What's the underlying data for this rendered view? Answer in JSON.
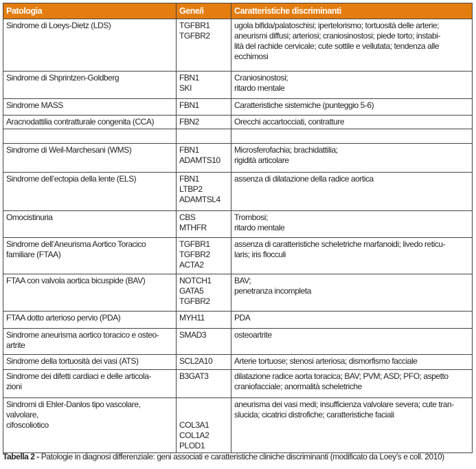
{
  "header": [
    "Patologia",
    "Gene/i",
    "Caratteristiche discriminanti"
  ],
  "rows": [
    {
      "p": [
        "Sindrome di Loeys-Dietz (LDS)"
      ],
      "g": [
        "TGFBR1",
        "TGFBR2"
      ],
      "c": [
        "ugola bifida/palatoschisi; ipertelorismo; tortuosità delle arterie;",
        "aneurismi diffusi; arteriosi; craniosinostosi; piede torto; instabi-",
        "lità del rachide cervicale; cute sottile e vellutata; tendenza alle",
        "ecchimosi"
      ]
    },
    {
      "p": [
        "Sindrome di Shprintzen-Goldberg"
      ],
      "g": [
        "FBN1",
        "SKI"
      ],
      "c": [
        "Craniosinostosi;",
        "ritardo mentale"
      ]
    },
    {
      "p": [
        "Sindrome MASS"
      ],
      "g": [
        "FBN1"
      ],
      "c": [
        "Caratteristiche sistemiche (punteggio 5-6)"
      ]
    },
    {
      "p": [
        "Aracnodattilia contratturale congenita (CCA)"
      ],
      "g": [
        "FBN2"
      ],
      "c": [
        "Orecchi accartocciati, contratture"
      ]
    },
    {
      "p": [
        ""
      ],
      "g": [
        ""
      ],
      "c": [
        ""
      ]
    },
    {
      "p": [
        "Sindrome di Weil-Marchesani (WMS)"
      ],
      "g": [
        "FBN1",
        "ADAMTS10"
      ],
      "c": [
        "Microsferofachia; brachidattilia;",
        "rigidità articolare"
      ]
    },
    {
      "p": [
        "Sindrome dell’ectopia della lente (ELS)"
      ],
      "g": [
        "FBN1",
        "LTBP2",
        "ADAMTSL4"
      ],
      "c": [
        "assenza di dilatazione della radice aortica"
      ]
    },
    {
      "p": [
        "Omocistinuria"
      ],
      "g": [
        "CBS",
        "MTHFR"
      ],
      "c": [
        "Trombosi;",
        "ritardo mentale"
      ]
    },
    {
      "p": [
        "Sindrome dell’Aneurisma Aortico Toracico",
        "familiare (FTAA)"
      ],
      "g": [
        "TGFBR1",
        "TGFBR2",
        "ACTA2"
      ],
      "c": [
        "assenza di caratteristiche scheletriche marfanoidi; livedo reticu-",
        "laris; iris flocculi"
      ]
    },
    {
      "p": [
        "FTAA con valvola aortica bicuspide (BAV)"
      ],
      "g": [
        "NOTCH1",
        "GATA5",
        "TGFBR2"
      ],
      "c": [
        "BAV;",
        "penetranza incompleta"
      ]
    },
    {
      "p": [
        "FTAA dotto arterioso pervio (PDA)"
      ],
      "g": [
        "MYH11"
      ],
      "c": [
        "PDA"
      ]
    },
    {
      "p": [
        "Sindrome aneurisma aortico toracico e osteo-",
        "artrite"
      ],
      "g": [
        "SMAD3"
      ],
      "c": [
        "osteoartrite"
      ]
    },
    {
      "p": [
        "Sindrome della tortuosità dei vasi (ATS)"
      ],
      "g": [
        "SCL2A10"
      ],
      "c": [
        "Arterie tortuose; stenosi arteriosa; dismorfismo facciale"
      ]
    },
    {
      "p": [
        "Sindrome dei difetti cardiaci e delle articola-",
        "zioni"
      ],
      "g": [
        "B3GAT3"
      ],
      "c": [
        "dilatazione radice aorta toracica; BAV; PVM; ASD; PFO; aspetto",
        "craniofacciale; anormalità scheletriche"
      ]
    },
    {
      "p": [
        "Sindromi di Ehler-Danlos tipo vascolare,",
        "valvolare,",
        "cifoscoliotico"
      ],
      "g": [
        "",
        "",
        "COL3A1",
        "COL1A2",
        "PLOD1"
      ],
      "c": [
        "aneurisma dei vasi medi; insufficienza valvolare severa; cute tran-",
        "slucida; cicatrici distrofiche; caratteristiche faciali"
      ]
    }
  ],
  "caption": {
    "label": "Tabella 2 -",
    "text": " Patologie in diagnosi differenziale: geni associati e caratteristiche cliniche discriminanti (modificato da Loey’s e coll. 2010)"
  }
}
